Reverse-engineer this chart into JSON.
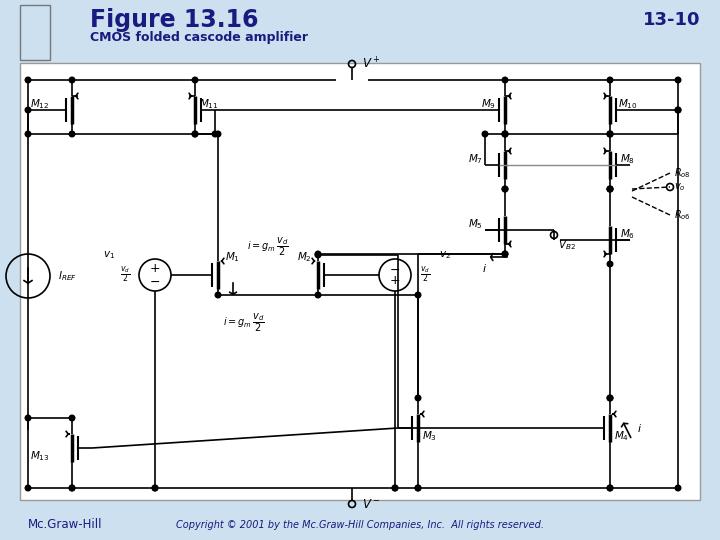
{
  "title": "Figure 13.16",
  "page_num": "13-10",
  "subtitle": "CMOS folded cascode amplifier",
  "bg_color": "#cce0f0",
  "circuit_bg": "#ffffff",
  "line_color": "#000000",
  "footer_left": "Mc.Graw-Hill",
  "footer_right": "Copyright © 2001 by the Mc.Graw-Hill Companies, Inc.  All rights reserved.",
  "title_color": "#1a1a80",
  "lw": 1.2
}
